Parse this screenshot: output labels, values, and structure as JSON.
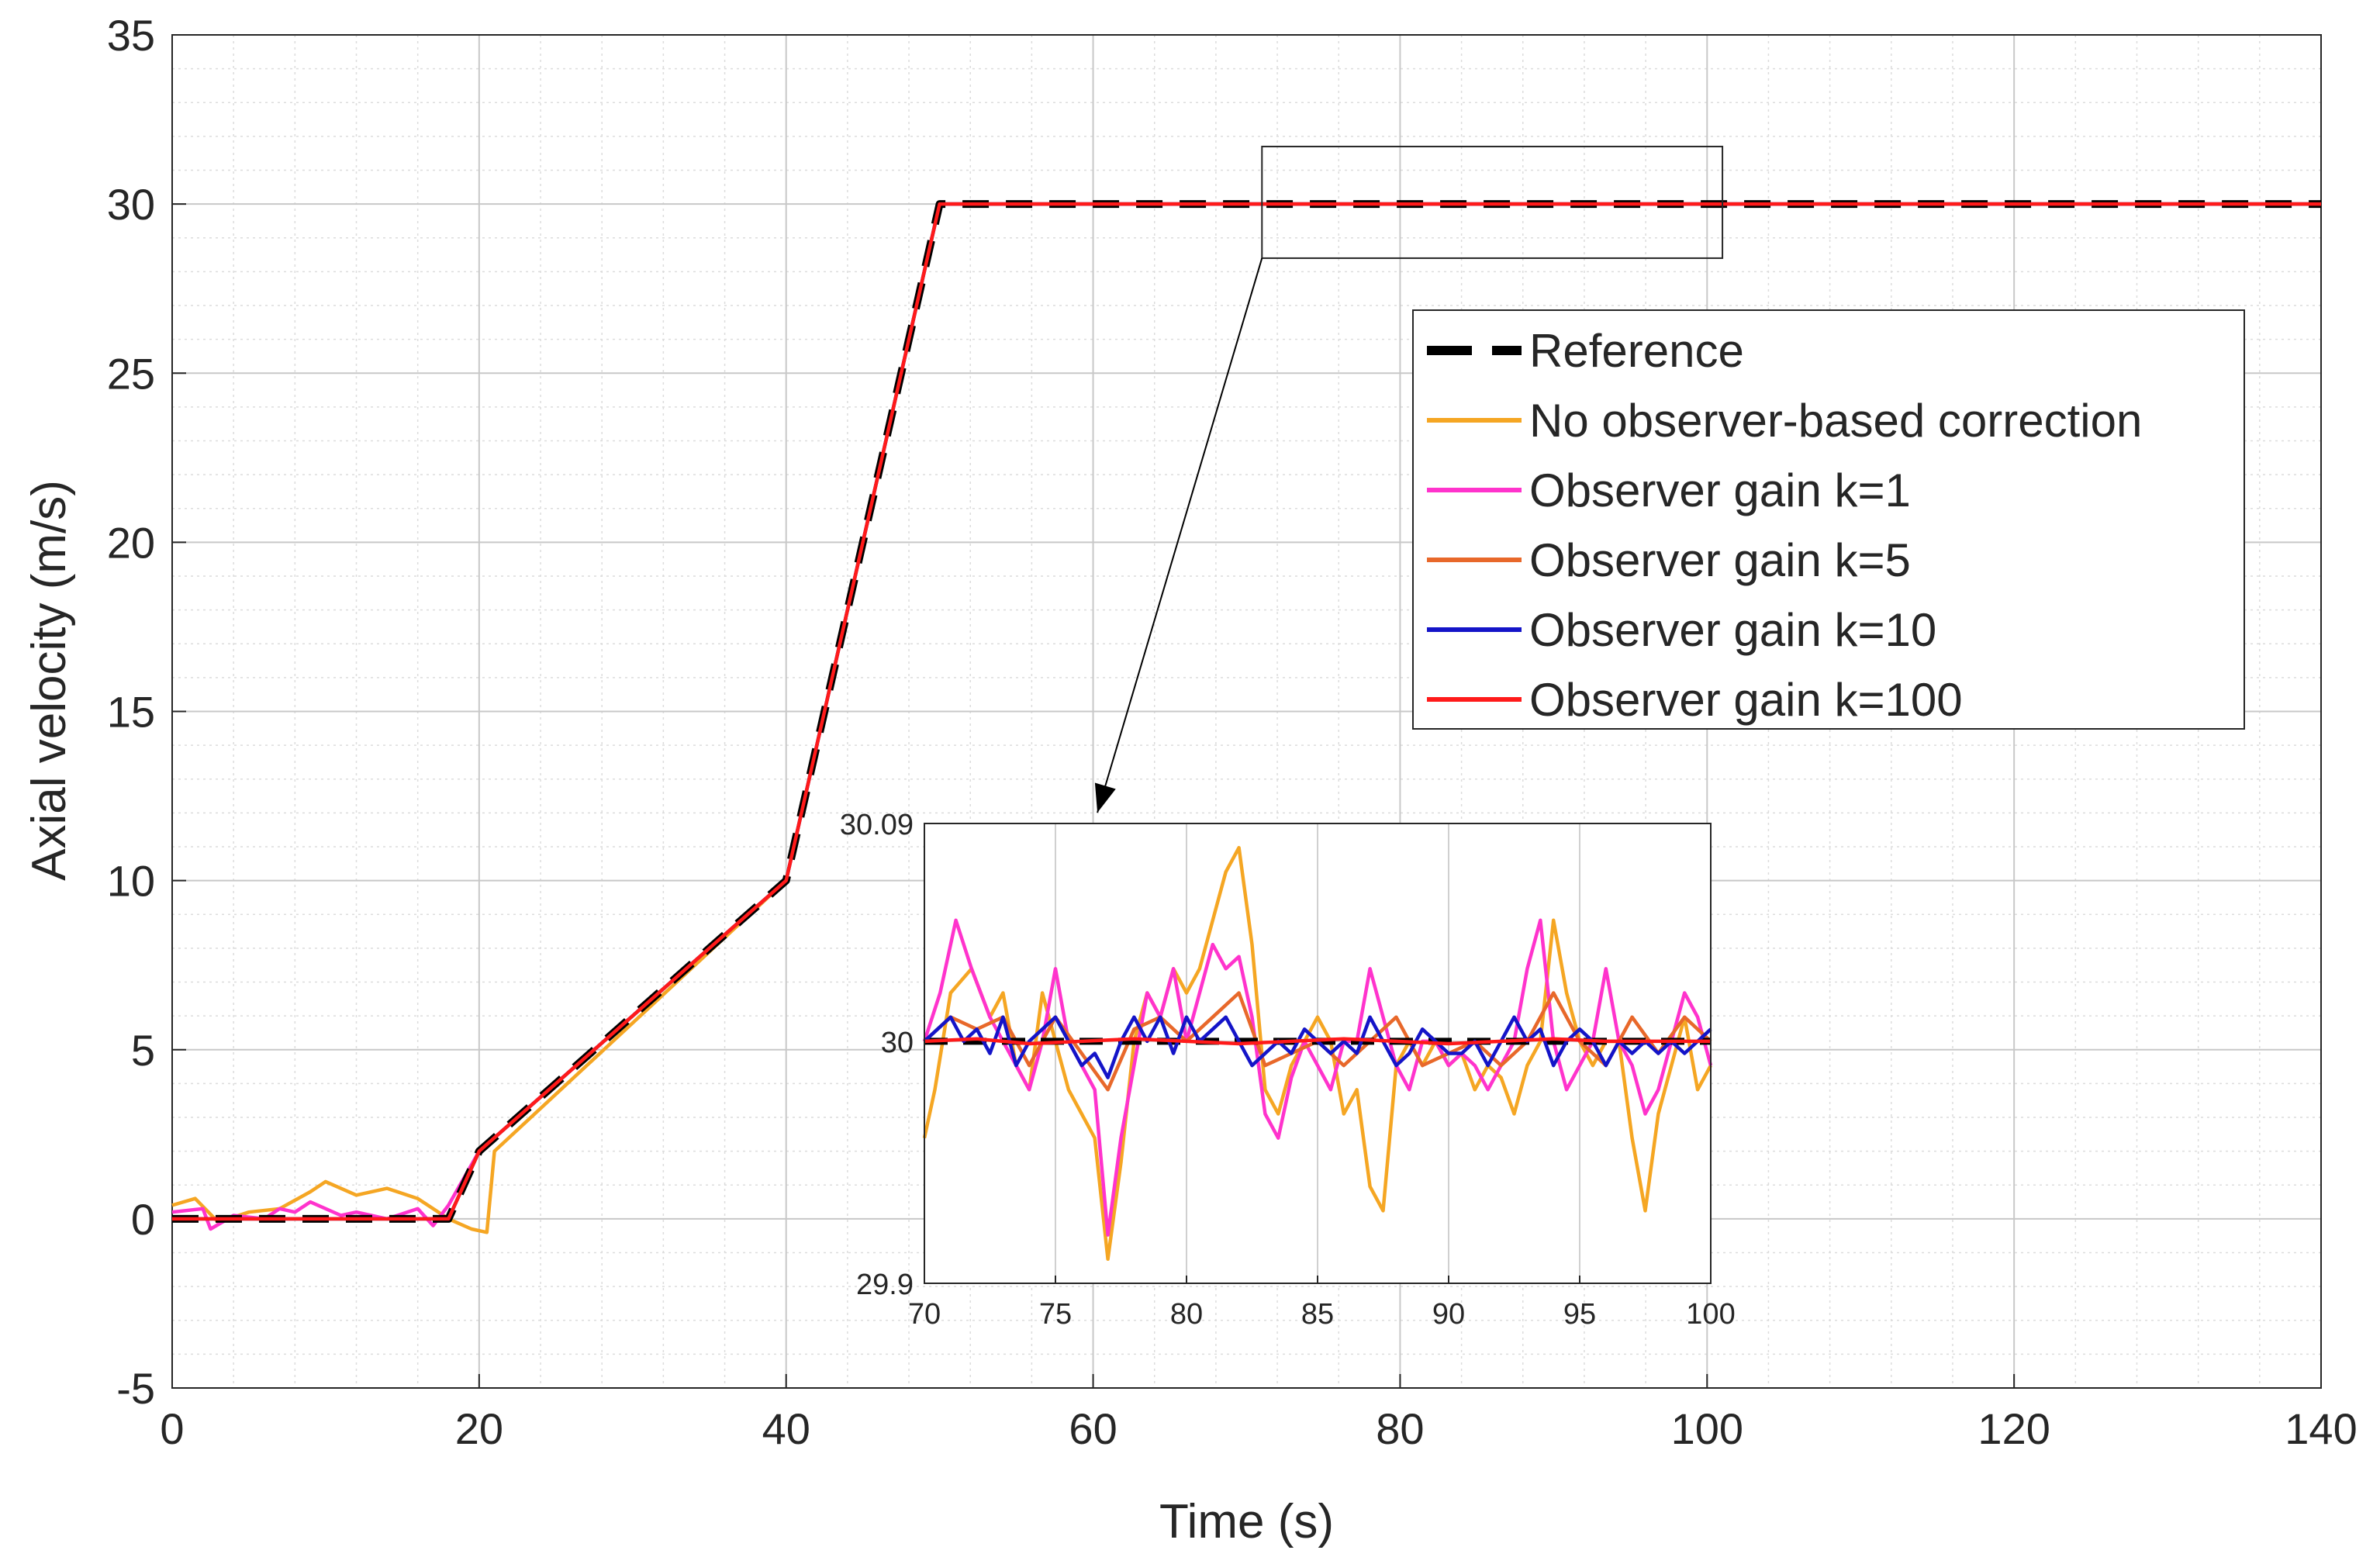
{
  "chart_data": {
    "type": "line",
    "xlabel": "Time (s)",
    "ylabel": "Axial velocity (m/s)",
    "xlim": [
      0,
      140
    ],
    "ylim": [
      -5,
      35
    ],
    "xticks": [
      0,
      20,
      40,
      60,
      80,
      100,
      120,
      140
    ],
    "yticks": [
      -5,
      0,
      5,
      10,
      15,
      20,
      25,
      30,
      35
    ],
    "grid": true,
    "minor_grid": true,
    "legend_position": "right, below zoom box",
    "series": [
      {
        "name": "Reference",
        "color": "#000000",
        "style": "dashed",
        "x": [
          0,
          18,
          20,
          40,
          50,
          140
        ],
        "y": [
          0,
          0,
          2,
          10,
          30,
          30
        ]
      },
      {
        "name": "No observer-based correction",
        "color": "#f5a623",
        "style": "solid",
        "x": [
          0,
          1.5,
          3,
          5,
          7,
          9,
          10,
          12,
          14,
          16,
          17,
          18,
          19.5,
          20.5,
          21,
          40,
          50,
          140
        ],
        "y": [
          0.4,
          0.6,
          -0.1,
          0.2,
          0.3,
          0.8,
          1.1,
          0.7,
          0.9,
          0.6,
          0.3,
          0.0,
          -0.3,
          -0.4,
          2,
          10,
          30,
          30
        ]
      },
      {
        "name": "Observer gain k=1",
        "color": "#ff33cc",
        "style": "solid",
        "x": [
          0,
          2,
          2.5,
          4,
          6,
          7,
          8,
          9,
          11,
          12,
          14,
          16,
          17,
          18,
          20,
          40,
          50,
          140
        ],
        "y": [
          0.2,
          0.3,
          -0.3,
          0.1,
          0.0,
          0.3,
          0.2,
          0.5,
          0.1,
          0.2,
          0.0,
          0.3,
          -0.2,
          0.4,
          2,
          10,
          30,
          30
        ]
      },
      {
        "name": "Observer gain k=5",
        "color": "#e8682a",
        "style": "solid",
        "x": [
          0,
          18,
          20,
          40,
          50,
          140
        ],
        "y": [
          0,
          0,
          2,
          10,
          30,
          30
        ]
      },
      {
        "name": "Observer gain k=10",
        "color": "#1414c8",
        "style": "solid",
        "x": [
          0,
          18,
          20,
          40,
          50,
          140
        ],
        "y": [
          0,
          0,
          2,
          10,
          30,
          30
        ]
      },
      {
        "name": "Observer gain k=100",
        "color": "#ff1a1a",
        "style": "solid",
        "x": [
          0,
          18,
          20,
          40,
          50,
          140
        ],
        "y": [
          0,
          0,
          2,
          10,
          30,
          30
        ]
      }
    ],
    "zoom_region": {
      "xlim": [
        71,
        101
      ],
      "ylim": [
        28.4,
        31.7
      ]
    },
    "inset": {
      "xlim": [
        70,
        100
      ],
      "ylim": [
        29.9,
        30.09
      ],
      "xticks": [
        70,
        75,
        80,
        85,
        90,
        95,
        100
      ],
      "ytick_labels": [
        "30.09",
        "30",
        "29.9"
      ],
      "ytick_values": [
        30.09,
        30,
        29.9
      ],
      "grid": true,
      "series": [
        {
          "name": "Reference",
          "color": "#000000",
          "style": "dashed",
          "x": [
            70,
            100
          ],
          "y": [
            30.0,
            30.0
          ]
        },
        {
          "name": "No observer-based correction",
          "color": "#f5a623",
          "style": "solid",
          "x": [
            70,
            70.4,
            71,
            71.8,
            72.5,
            73,
            73.5,
            74,
            74.5,
            75,
            75.5,
            76,
            76.5,
            77,
            77.5,
            78,
            78.5,
            79,
            79.5,
            80,
            80.5,
            81,
            81.5,
            82,
            82.5,
            83,
            83.5,
            84,
            84.5,
            85,
            85.5,
            86,
            86.5,
            87,
            87.5,
            88,
            88.5,
            89,
            89.5,
            90,
            90.5,
            91,
            91.5,
            92,
            92.5,
            93,
            93.5,
            94,
            94.5,
            95,
            95.5,
            96,
            96.5,
            97,
            97.5,
            98,
            98.5,
            99,
            99.5,
            100
          ],
          "y": [
            29.96,
            29.98,
            30.02,
            30.03,
            30.01,
            30.02,
            29.99,
            29.98,
            30.02,
            30.0,
            29.98,
            29.97,
            29.96,
            29.91,
            29.95,
            30.0,
            30.02,
            30.01,
            30.03,
            30.02,
            30.03,
            30.05,
            30.07,
            30.08,
            30.04,
            29.98,
            29.97,
            29.99,
            30.0,
            30.01,
            30.0,
            29.97,
            29.98,
            29.94,
            29.93,
            29.99,
            30.0,
            29.99,
            30.0,
            29.99,
            29.995,
            29.98,
            29.99,
            29.985,
            29.97,
            29.99,
            30.0,
            30.05,
            30.02,
            30.0,
            29.99,
            30.0,
            30.0,
            29.96,
            29.93,
            29.97,
            29.99,
            30.01,
            29.98,
            29.99
          ]
        },
        {
          "name": "Observer gain k=1",
          "color": "#ff33cc",
          "style": "solid",
          "x": [
            70,
            70.6,
            71.2,
            71.8,
            72.5,
            73,
            73.5,
            74,
            74.5,
            75,
            75.5,
            76,
            76.5,
            77,
            77.5,
            78,
            78.5,
            79,
            79.5,
            80,
            80.5,
            81,
            81.5,
            82,
            82.5,
            83,
            83.5,
            84,
            84.5,
            85,
            85.5,
            86,
            86.5,
            87,
            87.5,
            88,
            88.5,
            89,
            89.5,
            90,
            90.5,
            91,
            91.5,
            92,
            92.5,
            93,
            93.5,
            94,
            94.5,
            95,
            95.5,
            96,
            96.5,
            97,
            97.5,
            98,
            98.5,
            99,
            99.5,
            100
          ],
          "y": [
            30.0,
            30.02,
            30.05,
            30.03,
            30.01,
            30.0,
            29.99,
            29.98,
            30.0,
            30.03,
            30.0,
            29.99,
            29.98,
            29.92,
            29.96,
            29.99,
            30.02,
            30.01,
            30.03,
            30.0,
            30.02,
            30.04,
            30.03,
            30.035,
            30.01,
            29.97,
            29.96,
            29.985,
            30.0,
            29.99,
            29.98,
            30.0,
            30.0,
            30.03,
            30.01,
            29.99,
            29.98,
            30.0,
            30.0,
            29.99,
            29.995,
            29.99,
            29.98,
            29.99,
            30.0,
            30.03,
            30.05,
            30.0,
            29.98,
            29.99,
            30.0,
            30.03,
            30.0,
            29.99,
            29.97,
            29.98,
            30.0,
            30.02,
            30.01,
            29.99
          ]
        },
        {
          "name": "Observer gain k=5",
          "color": "#e8682a",
          "style": "solid",
          "x": [
            70,
            71,
            72,
            73,
            74,
            75,
            76,
            77,
            78,
            79,
            80,
            81,
            82,
            83,
            84,
            85,
            86,
            87,
            88,
            89,
            90,
            91,
            92,
            93,
            94,
            95,
            96,
            97,
            98,
            99,
            100
          ],
          "y": [
            30.0,
            30.01,
            30.005,
            30.01,
            29.99,
            30.01,
            29.995,
            29.98,
            30.005,
            30.01,
            30.0,
            30.01,
            30.02,
            29.99,
            29.995,
            30.0,
            29.99,
            30.0,
            30.01,
            29.99,
            29.995,
            30.0,
            29.99,
            30.0,
            30.02,
            30.0,
            29.99,
            30.01,
            29.995,
            30.01,
            30.0
          ]
        },
        {
          "name": "Observer gain k=10",
          "color": "#1414c8",
          "style": "solid",
          "x": [
            70,
            70.5,
            71,
            71.5,
            72,
            72.5,
            73,
            73.5,
            74,
            74.5,
            75,
            75.5,
            76,
            76.5,
            77,
            77.5,
            78,
            78.5,
            79,
            79.5,
            80,
            80.5,
            81,
            81.5,
            82,
            82.5,
            83,
            83.5,
            84,
            84.5,
            85,
            85.5,
            86,
            86.5,
            87,
            87.5,
            88,
            88.5,
            89,
            89.5,
            90,
            90.5,
            91,
            91.5,
            92,
            92.5,
            93,
            93.5,
            94,
            94.5,
            95,
            95.5,
            96,
            96.5,
            97,
            97.5,
            98,
            98.5,
            99,
            99.5,
            100
          ],
          "y": [
            30.0,
            30.005,
            30.01,
            30.0,
            30.005,
            29.995,
            30.01,
            29.99,
            30.0,
            30.005,
            30.01,
            30.0,
            29.99,
            29.995,
            29.985,
            30.0,
            30.01,
            30.0,
            30.01,
            29.995,
            30.01,
            30.0,
            30.005,
            30.01,
            30.0,
            29.99,
            29.995,
            30.0,
            29.995,
            30.005,
            30.0,
            29.995,
            30.0,
            29.995,
            30.01,
            30.0,
            29.99,
            29.995,
            30.005,
            30.0,
            29.995,
            29.995,
            30.0,
            29.99,
            30.0,
            30.01,
            30.0,
            30.005,
            29.99,
            30.0,
            30.005,
            30.0,
            29.99,
            30.0,
            29.995,
            30.0,
            29.995,
            30.0,
            29.995,
            30.0,
            30.005
          ]
        },
        {
          "name": "Observer gain k=100",
          "color": "#ff1a1a",
          "style": "solid",
          "x": [
            70,
            72,
            74,
            76,
            78,
            80,
            82,
            84,
            86,
            88,
            90,
            92,
            94,
            96,
            98,
            100
          ],
          "y": [
            30.0,
            30.001,
            29.999,
            30.0,
            30.001,
            30.0,
            29.999,
            30.0,
            30.001,
            30.0,
            29.999,
            30.0,
            30.001,
            30.0,
            30.0,
            30.0
          ]
        }
      ]
    }
  }
}
